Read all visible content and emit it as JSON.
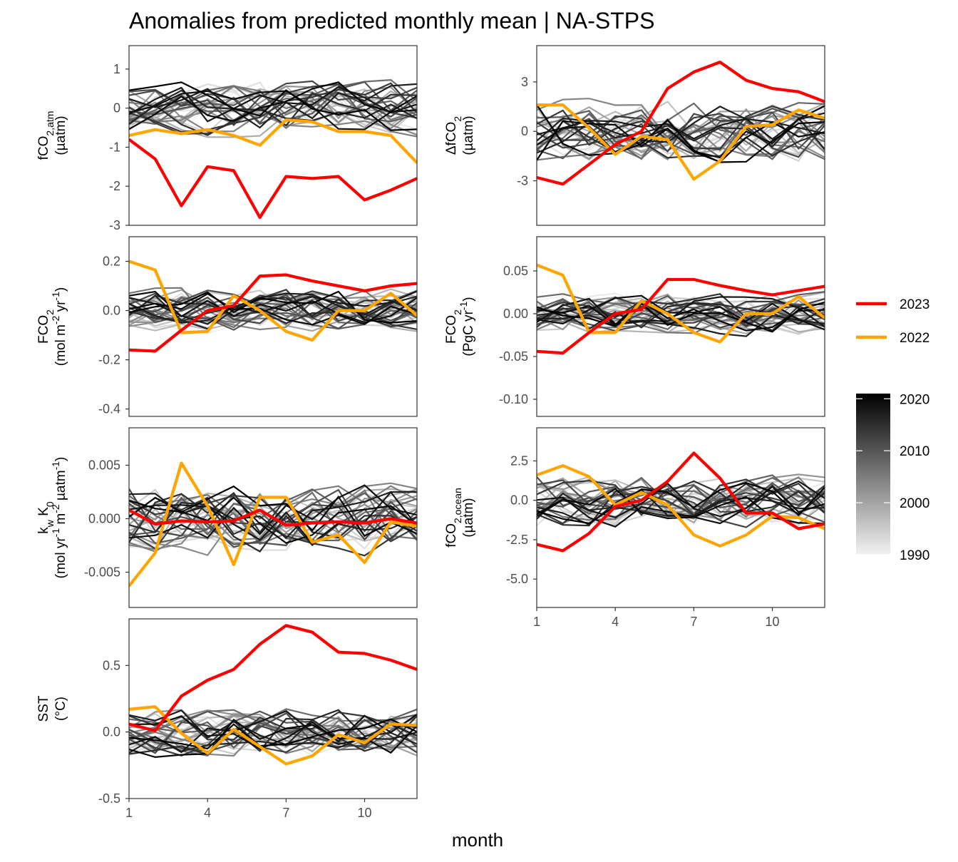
{
  "title": "Anomalies from predicted monthly mean | NA-STPS",
  "x_axis_label": "month",
  "legend": {
    "lines": [
      {
        "label": "2023",
        "color": "#ff0000"
      },
      {
        "label": "2022",
        "color": "#ffa500"
      }
    ],
    "colorbar": {
      "labels": [
        "2020",
        "2010",
        "2000",
        "1990"
      ],
      "range": [
        1990,
        2021
      ],
      "low_color": "#f2f2f2",
      "high_color": "#000000"
    }
  },
  "chart_data": [
    {
      "type": "line",
      "panel": "fCO2,atm",
      "ylabel_lines": [
        "fCO2,atm",
        "(µatm)"
      ],
      "xlim": [
        1,
        12
      ],
      "ylim": [
        -3,
        1.6
      ],
      "x_ticks": [
        1,
        4,
        7,
        10
      ],
      "y_ticks": [
        {
          "v": 1,
          "label": "1"
        },
        {
          "v": 0,
          "label": "0"
        },
        {
          "v": -1,
          "label": "-1"
        },
        {
          "v": -2,
          "label": "-2"
        },
        {
          "v": -3,
          "label": "-3"
        }
      ],
      "x": [
        1,
        2,
        3,
        4,
        5,
        6,
        7,
        8,
        9,
        10,
        11,
        12
      ],
      "highlight_series": [
        {
          "name": "2023",
          "color": "#ff0000",
          "values": [
            -0.8,
            -1.3,
            -2.5,
            -1.5,
            -1.6,
            -2.8,
            -1.75,
            -1.8,
            -1.75,
            -2.35,
            -2.1,
            -1.8
          ]
        },
        {
          "name": "2022",
          "color": "#ffa500",
          "values": [
            -0.7,
            -0.55,
            -0.65,
            -0.55,
            -0.7,
            -0.95,
            -0.3,
            -0.35,
            -0.6,
            -0.6,
            -0.7,
            -1.4
          ]
        }
      ],
      "background_band": {
        "years": [
          1990,
          2021
        ],
        "spread": 0.55,
        "seed": 11
      }
    },
    {
      "type": "line",
      "panel": "ΔfCO2",
      "ylabel_lines": [
        "ΔfCO2",
        "(µatm)"
      ],
      "xlim": [
        1,
        12
      ],
      "ylim": [
        -5.7,
        5.2
      ],
      "x_ticks": [
        1,
        4,
        7,
        10
      ],
      "y_ticks": [
        {
          "v": 3,
          "label": "3"
        },
        {
          "v": 0,
          "label": "0"
        },
        {
          "v": -3,
          "label": "-3"
        }
      ],
      "x": [
        1,
        2,
        3,
        4,
        5,
        6,
        7,
        8,
        9,
        10,
        11,
        12
      ],
      "highlight_series": [
        {
          "name": "2023",
          "color": "#ff0000",
          "values": [
            -2.8,
            -3.2,
            -2.0,
            -0.8,
            0,
            2.6,
            3.6,
            4.2,
            3.1,
            2.6,
            2.4,
            1.8
          ]
        },
        {
          "name": "2022",
          "color": "#ffa500",
          "values": [
            1.6,
            1.6,
            0.2,
            -1.4,
            -0.3,
            -0.5,
            -2.9,
            -1.8,
            0.3,
            0.4,
            1.3,
            0.8
          ]
        }
      ],
      "background_band": {
        "years": [
          1990,
          2021
        ],
        "spread": 1.5,
        "seed": 23
      }
    },
    {
      "type": "line",
      "panel": "FCO2 (mol)",
      "ylabel_lines": [
        "FCO2",
        "(mol m-2 yr-1)"
      ],
      "xlim": [
        1,
        12
      ],
      "ylim": [
        -0.43,
        0.3
      ],
      "x_ticks": [
        1,
        4,
        7,
        10
      ],
      "y_ticks": [
        {
          "v": 0.2,
          "label": "0.2"
        },
        {
          "v": 0,
          "label": "0.0"
        },
        {
          "v": -0.2,
          "label": "-0.2"
        },
        {
          "v": -0.4,
          "label": "-0.4"
        }
      ],
      "x": [
        1,
        2,
        3,
        4,
        5,
        6,
        7,
        8,
        9,
        10,
        11,
        12
      ],
      "highlight_series": [
        {
          "name": "2023",
          "color": "#ff0000",
          "values": [
            -0.16,
            -0.165,
            -0.08,
            0.0,
            0.02,
            0.14,
            0.145,
            0.12,
            0.1,
            0.08,
            0.1,
            0.11
          ]
        },
        {
          "name": "2022",
          "color": "#ffa500",
          "values": [
            0.2,
            0.165,
            -0.09,
            -0.085,
            0.06,
            0.0,
            -0.085,
            -0.12,
            0.0,
            0.0,
            0.07,
            -0.02
          ]
        }
      ],
      "background_band": {
        "years": [
          1990,
          2021
        ],
        "spread": 0.07,
        "seed": 37
      }
    },
    {
      "type": "line",
      "panel": "FCO2 (PgC)",
      "ylabel_lines": [
        "FCO2",
        "(PgC yr-1)"
      ],
      "xlim": [
        1,
        12
      ],
      "ylim": [
        -0.12,
        0.09
      ],
      "x_ticks": [
        1,
        4,
        7,
        10
      ],
      "y_ticks": [
        {
          "v": 0.05,
          "label": "0.05"
        },
        {
          "v": 0,
          "label": "0.00"
        },
        {
          "v": -0.05,
          "label": "-0.05"
        },
        {
          "v": -0.1,
          "label": "-0.10"
        }
      ],
      "x": [
        1,
        2,
        3,
        4,
        5,
        6,
        7,
        8,
        9,
        10,
        11,
        12
      ],
      "highlight_series": [
        {
          "name": "2023",
          "color": "#ff0000",
          "values": [
            -0.044,
            -0.046,
            -0.022,
            0.0,
            0.005,
            0.04,
            0.04,
            0.033,
            0.027,
            0.022,
            0.027,
            0.032
          ]
        },
        {
          "name": "2022",
          "color": "#ffa500",
          "values": [
            0.057,
            0.045,
            -0.022,
            -0.022,
            0.015,
            0.0,
            -0.022,
            -0.033,
            0.0,
            0.0,
            0.02,
            -0.005
          ]
        }
      ],
      "background_band": {
        "years": [
          1990,
          2021
        ],
        "spread": 0.019,
        "seed": 41
      }
    },
    {
      "type": "line",
      "panel": "kw K0",
      "ylabel_lines": [
        "kw K0",
        "(mol yr-1 m-2 µatm-1)"
      ],
      "xlim": [
        1,
        12
      ],
      "ylim": [
        -0.0083,
        0.0085
      ],
      "x_ticks": [
        1,
        4,
        7,
        10
      ],
      "y_ticks": [
        {
          "v": 0.005,
          "label": "0.005"
        },
        {
          "v": 0,
          "label": "0.000"
        },
        {
          "v": -0.005,
          "label": "-0.005"
        }
      ],
      "x": [
        1,
        2,
        3,
        4,
        5,
        6,
        7,
        8,
        9,
        10,
        11,
        12
      ],
      "highlight_series": [
        {
          "name": "2023",
          "color": "#ff0000",
          "values": [
            0.0008,
            -0.0005,
            -0.0002,
            -0.0003,
            -0.0002,
            0.0008,
            -0.0006,
            -0.0004,
            -0.0003,
            -0.0004,
            0.0,
            -0.0004
          ]
        },
        {
          "name": "2022",
          "color": "#ffa500",
          "values": [
            -0.0063,
            -0.0032,
            0.0052,
            0.0012,
            -0.0043,
            0.002,
            0.002,
            -0.0022,
            -0.0015,
            -0.0041,
            -0.0003,
            -0.0007
          ]
        }
      ],
      "background_band": {
        "years": [
          1990,
          2021
        ],
        "spread": 0.0026,
        "seed": 53
      }
    },
    {
      "type": "line",
      "panel": "fCO2,ocean",
      "ylabel_lines": [
        "fCO2,ocean",
        "(µatm)"
      ],
      "xlim": [
        1,
        12
      ],
      "ylim": [
        -6.8,
        4.6
      ],
      "x_ticks": [
        1,
        4,
        7,
        10
      ],
      "y_ticks": [
        {
          "v": 2.5,
          "label": "2.5"
        },
        {
          "v": 0,
          "label": "0.0"
        },
        {
          "v": -2.5,
          "label": "-2.5"
        },
        {
          "v": -5,
          "label": "-5.0"
        }
      ],
      "x": [
        1,
        2,
        3,
        4,
        5,
        6,
        7,
        8,
        9,
        10,
        11,
        12
      ],
      "highlight_series": [
        {
          "name": "2023",
          "color": "#ff0000",
          "values": [
            -2.8,
            -3.2,
            -2.1,
            -0.4,
            0,
            1.2,
            3.0,
            1.4,
            -0.8,
            -0.8,
            -1.8,
            -1.5
          ]
        },
        {
          "name": "2022",
          "color": "#ffa500",
          "values": [
            1.6,
            2.2,
            1.5,
            -0.3,
            0.5,
            -0.3,
            -2.2,
            -2.9,
            -2.2,
            -1.0,
            -1.1,
            -1.8
          ]
        }
      ],
      "background_band": {
        "years": [
          1990,
          2021
        ],
        "spread": 1.3,
        "seed": 67
      }
    },
    {
      "type": "line",
      "panel": "SST",
      "ylabel_lines": [
        "SST",
        "(°C)"
      ],
      "xlim": [
        1,
        12
      ],
      "ylim": [
        -0.5,
        0.85
      ],
      "x_ticks": [
        1,
        4,
        7,
        10
      ],
      "y_ticks": [
        {
          "v": 0.5,
          "label": "0.5"
        },
        {
          "v": 0,
          "label": "0.0"
        },
        {
          "v": -0.5,
          "label": "-0.5"
        }
      ],
      "x": [
        1,
        2,
        3,
        4,
        5,
        6,
        7,
        8,
        9,
        10,
        11,
        12
      ],
      "highlight_series": [
        {
          "name": "2023",
          "color": "#ff0000",
          "values": [
            0.06,
            0.01,
            0.27,
            0.39,
            0.47,
            0.66,
            0.8,
            0.75,
            0.6,
            0.59,
            0.54,
            0.47
          ]
        },
        {
          "name": "2022",
          "color": "#ffa500",
          "values": [
            0.17,
            0.19,
            -0.01,
            -0.16,
            0.02,
            -0.11,
            -0.24,
            -0.18,
            -0.02,
            -0.08,
            0.06,
            0.05
          ]
        }
      ],
      "background_band": {
        "years": [
          1990,
          2021
        ],
        "spread": 0.15,
        "seed": 79
      }
    }
  ]
}
